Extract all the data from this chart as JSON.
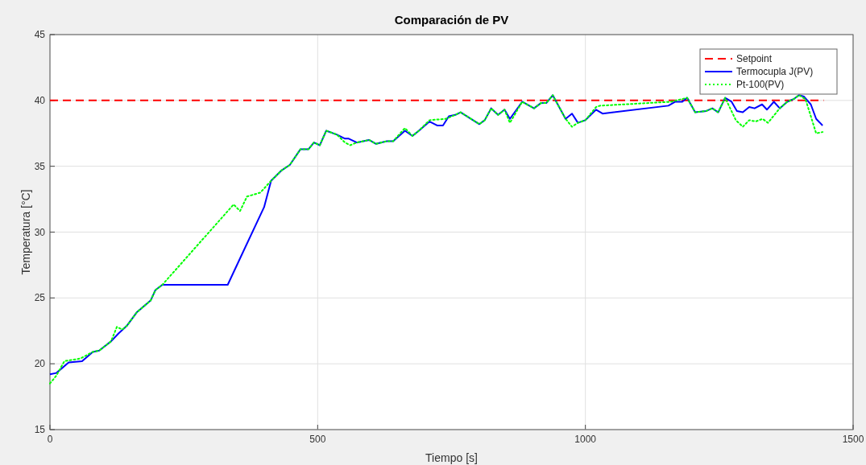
{
  "chart_data": {
    "type": "line",
    "title": "Comparación de PV",
    "xlabel": "Tiempo [s]",
    "ylabel": "Temperatura [°C]",
    "xlim": [
      0,
      1500
    ],
    "xticks": [
      0,
      500,
      1000,
      1500
    ],
    "ylim": [
      15,
      45
    ],
    "yticks": [
      15,
      20,
      25,
      30,
      35,
      40,
      45
    ],
    "grid": true,
    "legend": "top right",
    "series": [
      {
        "name": "Setpoint",
        "color": "#ff0000",
        "line_style": "dashed",
        "x": [
          0,
          1445
        ],
        "values": [
          40,
          40
        ]
      },
      {
        "name": "Termocupla J(PV)",
        "color": "#0000ff",
        "line_style": "solid",
        "x": [
          0,
          12,
          35,
          60,
          80,
          92,
          114,
          128,
          144,
          162,
          188,
          197,
          210,
          332,
          355,
          400,
          413,
          433,
          448,
          468,
          483,
          493,
          504,
          516,
          536,
          551,
          558,
          573,
          596,
          609,
          629,
          641,
          663,
          677,
          689,
          709,
          723,
          734,
          745,
          757,
          767,
          802,
          812,
          824,
          837,
          849,
          859,
          882,
          904,
          917,
          927,
          939,
          963,
          975,
          986,
          1000,
          1020,
          1032,
          1155,
          1168,
          1181,
          1190,
          1205,
          1226,
          1237,
          1248,
          1261,
          1273,
          1283,
          1294,
          1306,
          1316,
          1330,
          1339,
          1352,
          1363,
          1377,
          1389,
          1399,
          1408,
          1421,
          1431,
          1443
        ],
        "values": [
          19.2,
          19.3,
          20.1,
          20.2,
          20.9,
          21.0,
          21.7,
          22.3,
          22.9,
          23.9,
          24.8,
          25.6,
          26.0,
          26.0,
          28.0,
          31.9,
          33.9,
          34.7,
          35.1,
          36.3,
          36.3,
          36.8,
          36.6,
          37.7,
          37.4,
          37.1,
          37.1,
          36.8,
          37.0,
          36.7,
          36.9,
          36.9,
          37.7,
          37.3,
          37.7,
          38.4,
          38.1,
          38.1,
          38.8,
          38.9,
          39.1,
          38.2,
          38.5,
          39.4,
          38.9,
          39.3,
          38.6,
          39.9,
          39.4,
          39.8,
          39.8,
          40.4,
          38.6,
          39.0,
          38.3,
          38.5,
          39.3,
          39.0,
          39.6,
          39.9,
          39.9,
          40.2,
          39.1,
          39.2,
          39.4,
          39.1,
          40.2,
          39.9,
          39.2,
          39.1,
          39.5,
          39.4,
          39.7,
          39.3,
          39.9,
          39.4,
          39.9,
          40.1,
          40.4,
          40.3,
          39.7,
          38.6,
          38.1
        ]
      },
      {
        "name": "Pt-100(PV)",
        "color": "#00ff00",
        "line_style": "dotted",
        "x": [
          0,
          12,
          27,
          57,
          80,
          92,
          114,
          125,
          135,
          144,
          162,
          188,
          197,
          210,
          343,
          355,
          368,
          393,
          413,
          433,
          448,
          468,
          483,
          493,
          504,
          516,
          536,
          551,
          561,
          573,
          596,
          609,
          629,
          641,
          663,
          677,
          689,
          709,
          739,
          757,
          767,
          802,
          812,
          824,
          837,
          849,
          859,
          882,
          904,
          917,
          927,
          939,
          963,
          975,
          986,
          1000,
          1020,
          1027,
          1160,
          1190,
          1205,
          1226,
          1237,
          1248,
          1261,
          1281,
          1294,
          1306,
          1318,
          1331,
          1341,
          1363,
          1377,
          1389,
          1399,
          1411,
          1431,
          1443
        ],
        "values": [
          18.5,
          19.1,
          20.2,
          20.4,
          20.9,
          21.0,
          21.7,
          22.8,
          22.6,
          22.9,
          23.9,
          24.8,
          25.6,
          26.0,
          32.1,
          31.6,
          32.7,
          33.0,
          33.9,
          34.7,
          35.1,
          36.3,
          36.3,
          36.8,
          36.6,
          37.7,
          37.4,
          36.8,
          36.6,
          36.8,
          37.0,
          36.7,
          36.9,
          36.9,
          37.9,
          37.3,
          37.7,
          38.5,
          38.6,
          38.9,
          39.1,
          38.2,
          38.5,
          39.4,
          38.9,
          39.3,
          38.3,
          39.9,
          39.4,
          39.8,
          39.8,
          40.4,
          38.6,
          38.0,
          38.3,
          38.5,
          39.5,
          39.6,
          39.9,
          40.2,
          39.1,
          39.2,
          39.4,
          39.1,
          40.2,
          38.5,
          38.0,
          38.5,
          38.4,
          38.6,
          38.3,
          39.4,
          39.9,
          40.1,
          40.4,
          40.1,
          37.5,
          37.6
        ]
      }
    ]
  }
}
